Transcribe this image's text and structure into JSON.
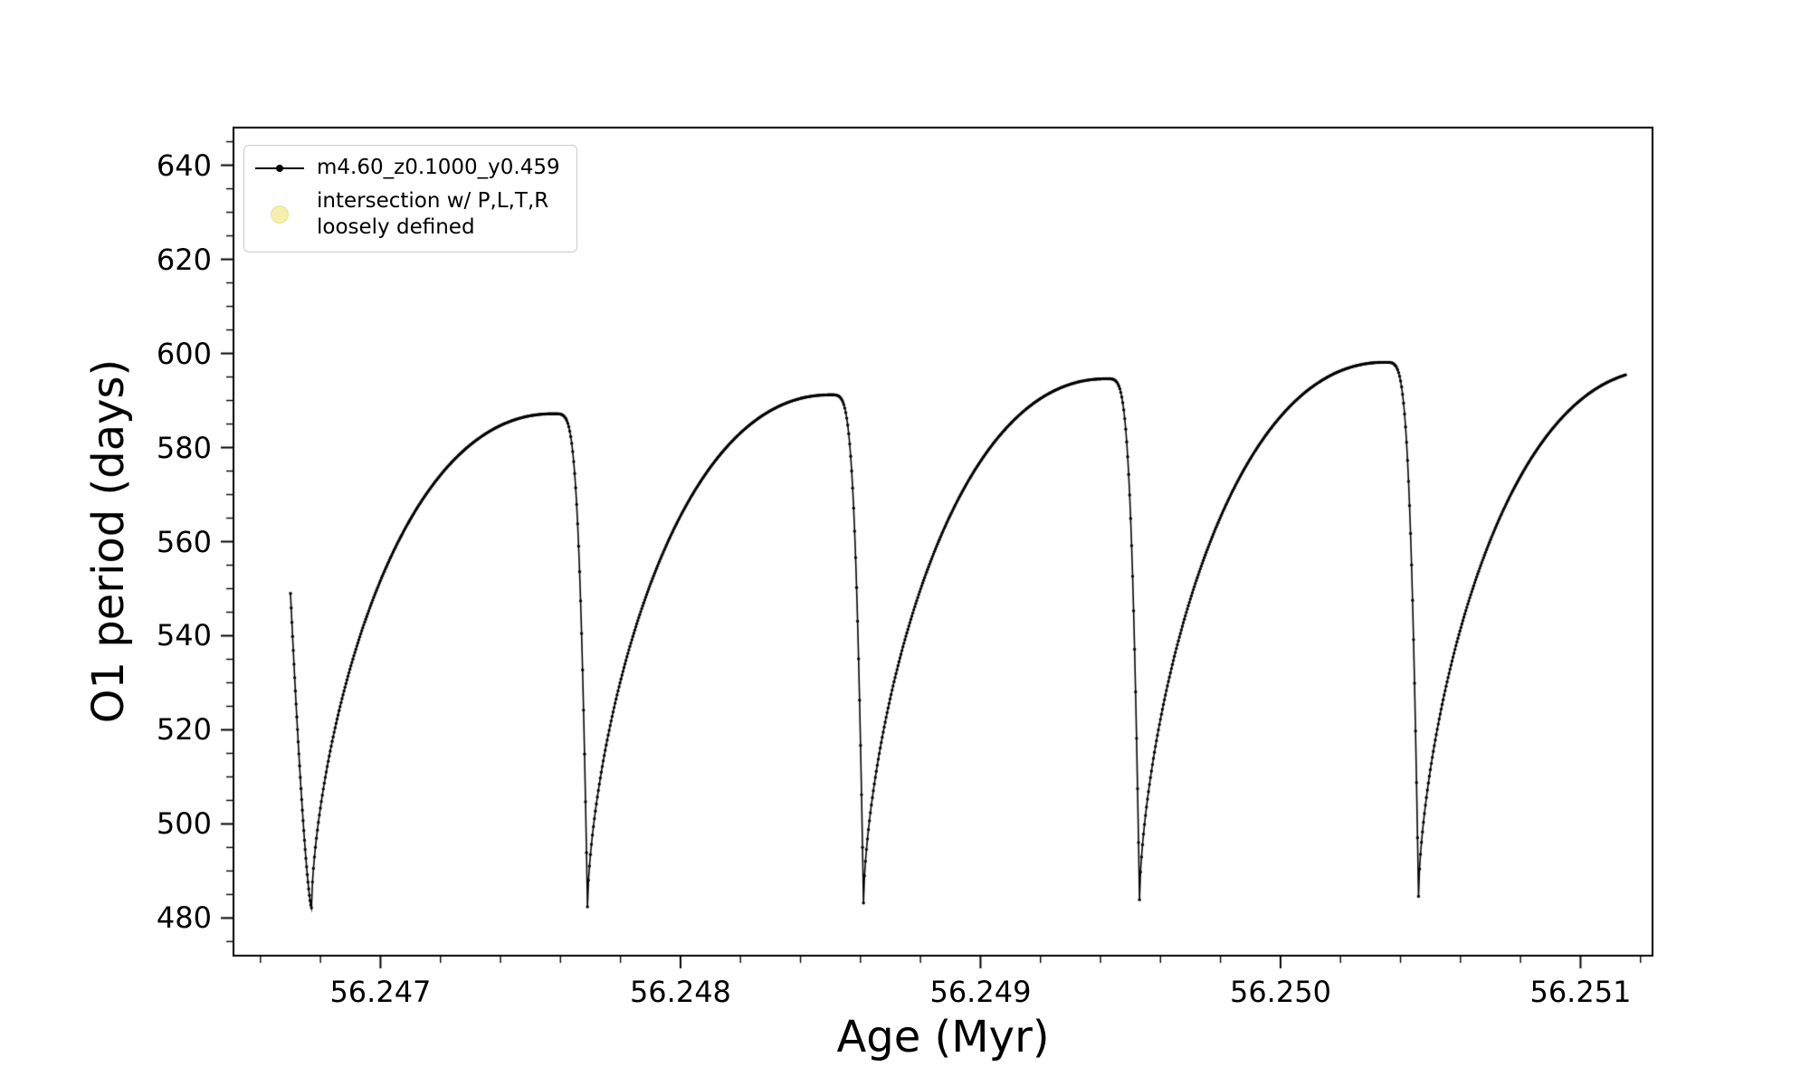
{
  "figure": {
    "background": "#ffffff",
    "line_color": "#000000",
    "spine_color": "#000000"
  },
  "legend": {
    "entries": [
      {
        "label": "m4.60_z0.1000_y0.459",
        "marker": "line-dot",
        "color": "#000000"
      },
      {
        "label": "intersection w/ P,L,T,R\nloosely defined",
        "marker": "circle",
        "color": "#f4efad"
      }
    ]
  },
  "chart_data": {
    "type": "line",
    "title": "",
    "xlabel": "Age (Myr)",
    "ylabel": "O1 period (days)",
    "xlim": [
      56.24651,
      56.25124
    ],
    "ylim": [
      472,
      648
    ],
    "grid": false,
    "legend_position": "upper left",
    "xticks": [
      56.247,
      56.248,
      56.249,
      56.25,
      56.251
    ],
    "xtick_labels": [
      "56.247",
      "56.248",
      "56.249",
      "56.250",
      "56.251"
    ],
    "yticks": [
      480,
      500,
      520,
      540,
      560,
      580,
      600,
      620,
      640
    ],
    "x_minor_step": 0.0002,
    "y_minor_step": 5,
    "series": [
      {
        "name": "m4.60_z0.1000_y0.459",
        "style": "black line with small point markers",
        "description": "Relaxation-oscillation sawtooth: from each minimum the period rises steeply then flattens to a rounded peak, curls over and plunges nearly vertically to the next minimum; about 5 cycles, period ~0.00092 Myr, peaks slowly increasing 587 -> 597.5 days, minima slowly increasing 482 -> 485 days",
        "start_point": {
          "x": 56.2467,
          "y": 549
        },
        "cycles": [
          {
            "x_min": 56.24677,
            "y_min": 482.2,
            "y_peak": 587.0
          },
          {
            "x_min": 56.24769,
            "y_min": 482.4,
            "y_peak": 590.5
          },
          {
            "x_min": 56.24861,
            "y_min": 483.2,
            "y_peak": 594.0
          },
          {
            "x_min": 56.24953,
            "y_min": 483.9,
            "y_peak": 597.5
          },
          {
            "x_min": 56.25046,
            "y_min": 484.6,
            "y_peak": 596.5
          }
        ],
        "rise_fraction": 0.87,
        "x_end": 56.25115,
        "y_end": 595
      }
    ]
  }
}
